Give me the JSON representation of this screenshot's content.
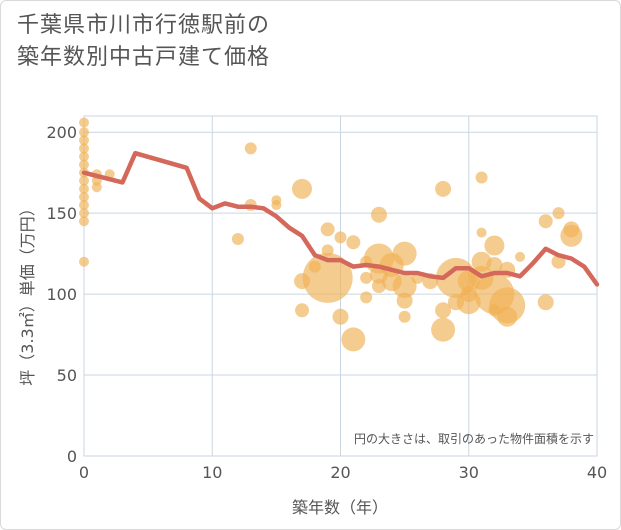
{
  "title_line1": "千葉県市川市行徳駅前の",
  "title_line2": "築年数別中古戸建て価格",
  "chart_data": {
    "type": "scatter",
    "title": "千葉県市川市行徳駅前の築年数別中古戸建て価格",
    "xlabel": "築年数（年）",
    "ylabel": "坪（3.3㎡）単価（万円）",
    "xlim": [
      0,
      40
    ],
    "ylim": [
      0,
      210
    ],
    "xticks": [
      0,
      10,
      20,
      30,
      40
    ],
    "yticks": [
      0,
      50,
      100,
      150,
      200
    ],
    "grid": true,
    "note": "円の大きさは、取引のあった物件面積を示す",
    "colors": {
      "bubble": "#f0b055",
      "line": "#d4685a",
      "grid": "#c9d6e0",
      "text": "#555555"
    },
    "bubbles": [
      {
        "x": 0,
        "y": 206,
        "s": 5
      },
      {
        "x": 0,
        "y": 200,
        "s": 5
      },
      {
        "x": 0,
        "y": 195,
        "s": 5
      },
      {
        "x": 0,
        "y": 190,
        "s": 5
      },
      {
        "x": 0,
        "y": 185,
        "s": 5
      },
      {
        "x": 0,
        "y": 180,
        "s": 5
      },
      {
        "x": 0,
        "y": 175,
        "s": 5
      },
      {
        "x": 0,
        "y": 170,
        "s": 5
      },
      {
        "x": 0,
        "y": 165,
        "s": 5
      },
      {
        "x": 0,
        "y": 160,
        "s": 5
      },
      {
        "x": 0,
        "y": 155,
        "s": 5
      },
      {
        "x": 0,
        "y": 150,
        "s": 5
      },
      {
        "x": 0,
        "y": 145,
        "s": 5
      },
      {
        "x": 0,
        "y": 120,
        "s": 5
      },
      {
        "x": 1,
        "y": 174,
        "s": 5
      },
      {
        "x": 1,
        "y": 170,
        "s": 5
      },
      {
        "x": 1,
        "y": 166,
        "s": 5
      },
      {
        "x": 2,
        "y": 174,
        "s": 5
      },
      {
        "x": 12,
        "y": 134,
        "s": 6
      },
      {
        "x": 13,
        "y": 190,
        "s": 6
      },
      {
        "x": 13,
        "y": 155,
        "s": 6
      },
      {
        "x": 15,
        "y": 158,
        "s": 5
      },
      {
        "x": 15,
        "y": 155,
        "s": 5
      },
      {
        "x": 17,
        "y": 165,
        "s": 10
      },
      {
        "x": 17,
        "y": 108,
        "s": 8
      },
      {
        "x": 17,
        "y": 90,
        "s": 7
      },
      {
        "x": 18,
        "y": 117,
        "s": 6
      },
      {
        "x": 19,
        "y": 140,
        "s": 7
      },
      {
        "x": 19,
        "y": 127,
        "s": 6
      },
      {
        "x": 19,
        "y": 110,
        "s": 25
      },
      {
        "x": 20,
        "y": 135,
        "s": 6
      },
      {
        "x": 20,
        "y": 86,
        "s": 8
      },
      {
        "x": 21,
        "y": 132,
        "s": 7
      },
      {
        "x": 21,
        "y": 72,
        "s": 12
      },
      {
        "x": 22,
        "y": 120,
        "s": 6
      },
      {
        "x": 22,
        "y": 110,
        "s": 6
      },
      {
        "x": 22,
        "y": 98,
        "s": 6
      },
      {
        "x": 23,
        "y": 149,
        "s": 8
      },
      {
        "x": 23,
        "y": 122,
        "s": 15
      },
      {
        "x": 23,
        "y": 112,
        "s": 9
      },
      {
        "x": 23,
        "y": 105,
        "s": 7
      },
      {
        "x": 24,
        "y": 118,
        "s": 12
      },
      {
        "x": 24,
        "y": 108,
        "s": 10
      },
      {
        "x": 25,
        "y": 125,
        "s": 12
      },
      {
        "x": 25,
        "y": 105,
        "s": 12
      },
      {
        "x": 25,
        "y": 96,
        "s": 8
      },
      {
        "x": 25,
        "y": 86,
        "s": 6
      },
      {
        "x": 26,
        "y": 110,
        "s": 6
      },
      {
        "x": 27,
        "y": 108,
        "s": 8
      },
      {
        "x": 28,
        "y": 165,
        "s": 8
      },
      {
        "x": 28,
        "y": 90,
        "s": 8
      },
      {
        "x": 28,
        "y": 78,
        "s": 12
      },
      {
        "x": 29,
        "y": 110,
        "s": 20
      },
      {
        "x": 29,
        "y": 95,
        "s": 8
      },
      {
        "x": 30,
        "y": 108,
        "s": 11
      },
      {
        "x": 30,
        "y": 95,
        "s": 12
      },
      {
        "x": 30,
        "y": 100,
        "s": 8
      },
      {
        "x": 31,
        "y": 172,
        "s": 6
      },
      {
        "x": 31,
        "y": 138,
        "s": 5
      },
      {
        "x": 31,
        "y": 120,
        "s": 10
      },
      {
        "x": 31,
        "y": 110,
        "s": 12
      },
      {
        "x": 32,
        "y": 130,
        "s": 10
      },
      {
        "x": 32,
        "y": 118,
        "s": 8
      },
      {
        "x": 32,
        "y": 100,
        "s": 20
      },
      {
        "x": 32,
        "y": 90,
        "s": 6
      },
      {
        "x": 33,
        "y": 115,
        "s": 8
      },
      {
        "x": 33,
        "y": 93,
        "s": 18
      },
      {
        "x": 33,
        "y": 86,
        "s": 10
      },
      {
        "x": 34,
        "y": 123,
        "s": 5
      },
      {
        "x": 36,
        "y": 145,
        "s": 7
      },
      {
        "x": 36,
        "y": 95,
        "s": 8
      },
      {
        "x": 37,
        "y": 150,
        "s": 6
      },
      {
        "x": 37,
        "y": 120,
        "s": 7
      },
      {
        "x": 38,
        "y": 140,
        "s": 8
      },
      {
        "x": 38,
        "y": 136,
        "s": 11
      }
    ],
    "line": {
      "x": [
        0,
        3,
        4,
        8,
        9,
        10,
        11,
        12,
        13,
        14,
        15,
        16,
        17,
        18,
        19,
        20,
        21,
        22,
        23,
        24,
        25,
        26,
        27,
        28,
        29,
        30,
        31,
        32,
        33,
        34,
        35,
        36,
        37,
        38,
        39,
        40
      ],
      "y": [
        175,
        169,
        187,
        178,
        159,
        153,
        156,
        154,
        154,
        153,
        148,
        141,
        136,
        124,
        121,
        121,
        117,
        118,
        117,
        115,
        113,
        113,
        111,
        110,
        116,
        116,
        111,
        113,
        113,
        111,
        119,
        128,
        124,
        122,
        117,
        106
      ]
    }
  }
}
